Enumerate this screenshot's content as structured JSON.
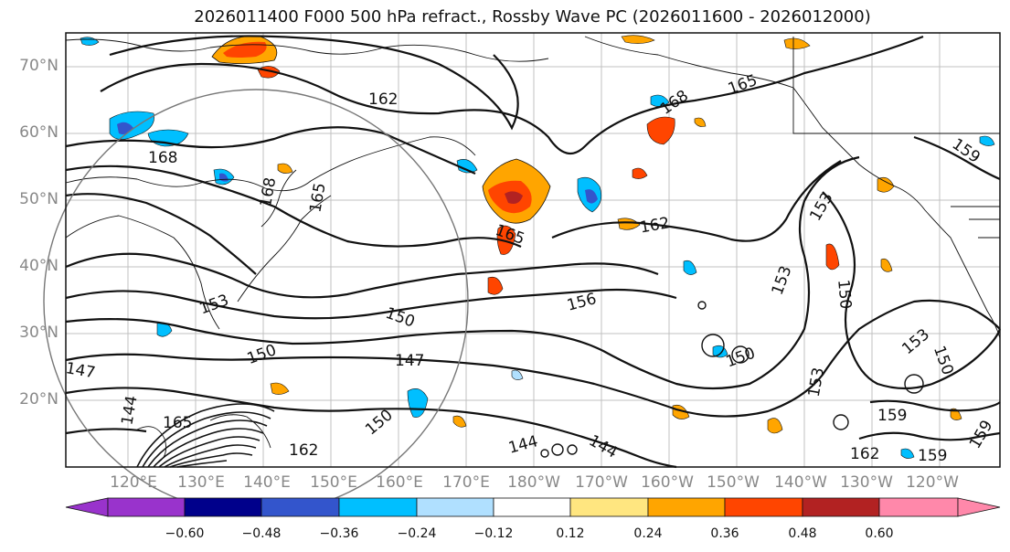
{
  "title": "2026011400 F000 500 hPa refract., Rossby Wave PC (2026011600 - 2026012000)",
  "latitude_labels": [
    "70°N",
    "60°N",
    "50°N",
    "40°N",
    "30°N",
    "20°N"
  ],
  "longitude_labels": [
    "120°E",
    "130°E",
    "140°E",
    "150°E",
    "160°E",
    "170°E",
    "180°W",
    "170°W",
    "160°W",
    "150°W",
    "140°W",
    "130°W",
    "120°W"
  ],
  "colorbar": {
    "ticks": [
      "−0.60",
      "−0.48",
      "−0.36",
      "−0.24",
      "−0.12",
      "0.12",
      "0.24",
      "0.36",
      "0.48",
      "0.60"
    ],
    "colors": [
      "#9933cc",
      "#00008b",
      "#3355cc",
      "#00bfff",
      "#b0e0ff",
      "#ffffff",
      "#ffe680",
      "#ffa500",
      "#ff4500",
      "#b22222",
      "#ff88aa"
    ]
  },
  "contour_labels": [
    "162",
    "168",
    "165",
    "168",
    "165",
    "159",
    "153",
    "150",
    "156",
    "162",
    "165",
    "153",
    "150",
    "153",
    "150",
    "147",
    "150",
    "147",
    "144",
    "165",
    "162",
    "150",
    "144",
    "144",
    "159",
    "162",
    "159",
    "159",
    "153",
    "168",
    "150",
    "153"
  ]
}
